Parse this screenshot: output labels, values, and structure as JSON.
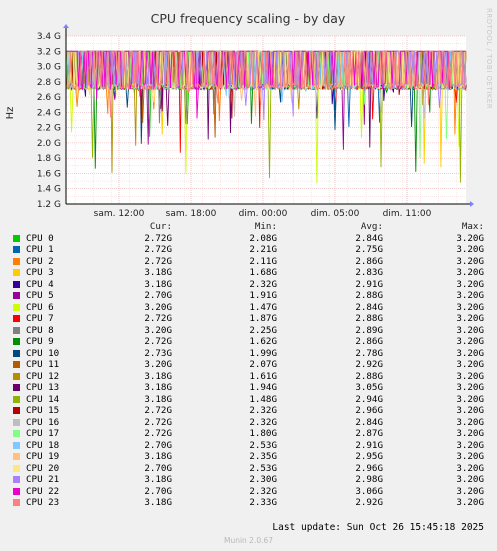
{
  "chart_data": {
    "type": "line",
    "title": "CPU frequency scaling - by day",
    "ylabel": "Hz",
    "ylim": [
      1.2,
      3.4
    ],
    "yticks": [
      "1.2 G",
      "1.4 G",
      "1.6 G",
      "1.8 G",
      "2.0 G",
      "2.2 G",
      "2.4 G",
      "2.6 G",
      "2.8 G",
      "3.0 G",
      "3.2 G",
      "3.4 G"
    ],
    "xticks": [
      "sam. 12:00",
      "sam. 18:00",
      "dim. 00:00",
      "dim. 05:00",
      "dim. 11:00"
    ],
    "grid": true,
    "side_text": "RRDTOOL / TOBI OETIKER",
    "columns": [
      "Cur:",
      "Min:",
      "Avg:",
      "Max:"
    ],
    "series": [
      {
        "name": "CPU  0",
        "color": "#00cc00",
        "cur": "2.72G",
        "min": "2.08G",
        "avg": "2.84G",
        "max": "3.20G"
      },
      {
        "name": "CPU  1",
        "color": "#0066b3",
        "cur": "2.72G",
        "min": "2.21G",
        "avg": "2.75G",
        "max": "3.20G"
      },
      {
        "name": "CPU  2",
        "color": "#ff8000",
        "cur": "2.72G",
        "min": "2.11G",
        "avg": "2.86G",
        "max": "3.20G"
      },
      {
        "name": "CPU  3",
        "color": "#ffcc00",
        "cur": "3.18G",
        "min": "1.68G",
        "avg": "2.83G",
        "max": "3.20G"
      },
      {
        "name": "CPU  4",
        "color": "#330099",
        "cur": "3.18G",
        "min": "2.32G",
        "avg": "2.91G",
        "max": "3.20G"
      },
      {
        "name": "CPU  5",
        "color": "#990099",
        "cur": "2.70G",
        "min": "1.91G",
        "avg": "2.88G",
        "max": "3.20G"
      },
      {
        "name": "CPU  6",
        "color": "#ccff00",
        "cur": "3.20G",
        "min": "1.47G",
        "avg": "2.84G",
        "max": "3.20G"
      },
      {
        "name": "CPU  7",
        "color": "#ff0000",
        "cur": "2.72G",
        "min": "1.87G",
        "avg": "2.88G",
        "max": "3.20G"
      },
      {
        "name": "CPU  8",
        "color": "#808080",
        "cur": "3.20G",
        "min": "2.25G",
        "avg": "2.89G",
        "max": "3.20G"
      },
      {
        "name": "CPU  9",
        "color": "#008f00",
        "cur": "2.72G",
        "min": "1.62G",
        "avg": "2.86G",
        "max": "3.20G"
      },
      {
        "name": "CPU 10",
        "color": "#00487d",
        "cur": "2.73G",
        "min": "1.99G",
        "avg": "2.78G",
        "max": "3.20G"
      },
      {
        "name": "CPU 11",
        "color": "#b35a00",
        "cur": "3.20G",
        "min": "2.07G",
        "avg": "2.92G",
        "max": "3.20G"
      },
      {
        "name": "CPU 12",
        "color": "#b38f00",
        "cur": "3.18G",
        "min": "1.61G",
        "avg": "2.88G",
        "max": "3.20G"
      },
      {
        "name": "CPU 13",
        "color": "#6b006b",
        "cur": "3.18G",
        "min": "1.94G",
        "avg": "3.05G",
        "max": "3.20G"
      },
      {
        "name": "CPU 14",
        "color": "#8fb300",
        "cur": "3.18G",
        "min": "1.48G",
        "avg": "2.94G",
        "max": "3.20G"
      },
      {
        "name": "CPU 15",
        "color": "#b30000",
        "cur": "2.72G",
        "min": "2.32G",
        "avg": "2.96G",
        "max": "3.20G"
      },
      {
        "name": "CPU 16",
        "color": "#bebebe",
        "cur": "2.72G",
        "min": "2.32G",
        "avg": "2.84G",
        "max": "3.20G"
      },
      {
        "name": "CPU 17",
        "color": "#80ff80",
        "cur": "2.72G",
        "min": "1.80G",
        "avg": "2.87G",
        "max": "3.20G"
      },
      {
        "name": "CPU 18",
        "color": "#80c9ff",
        "cur": "2.70G",
        "min": "2.53G",
        "avg": "2.91G",
        "max": "3.20G"
      },
      {
        "name": "CPU 19",
        "color": "#ffc080",
        "cur": "3.18G",
        "min": "2.35G",
        "avg": "2.95G",
        "max": "3.20G"
      },
      {
        "name": "CPU 20",
        "color": "#ffe680",
        "cur": "2.70G",
        "min": "2.53G",
        "avg": "2.96G",
        "max": "3.20G"
      },
      {
        "name": "CPU 21",
        "color": "#aa80ff",
        "cur": "3.18G",
        "min": "2.30G",
        "avg": "2.98G",
        "max": "3.20G"
      },
      {
        "name": "CPU 22",
        "color": "#ee00cc",
        "cur": "2.70G",
        "min": "2.32G",
        "avg": "3.06G",
        "max": "3.20G"
      },
      {
        "name": "CPU 23",
        "color": "#ff8080",
        "cur": "3.18G",
        "min": "2.33G",
        "avg": "2.92G",
        "max": "3.20G"
      }
    ]
  },
  "last_update": "Last update: Sun Oct 26 15:45:18 2025",
  "munin_version": "Munin 2.0.67"
}
